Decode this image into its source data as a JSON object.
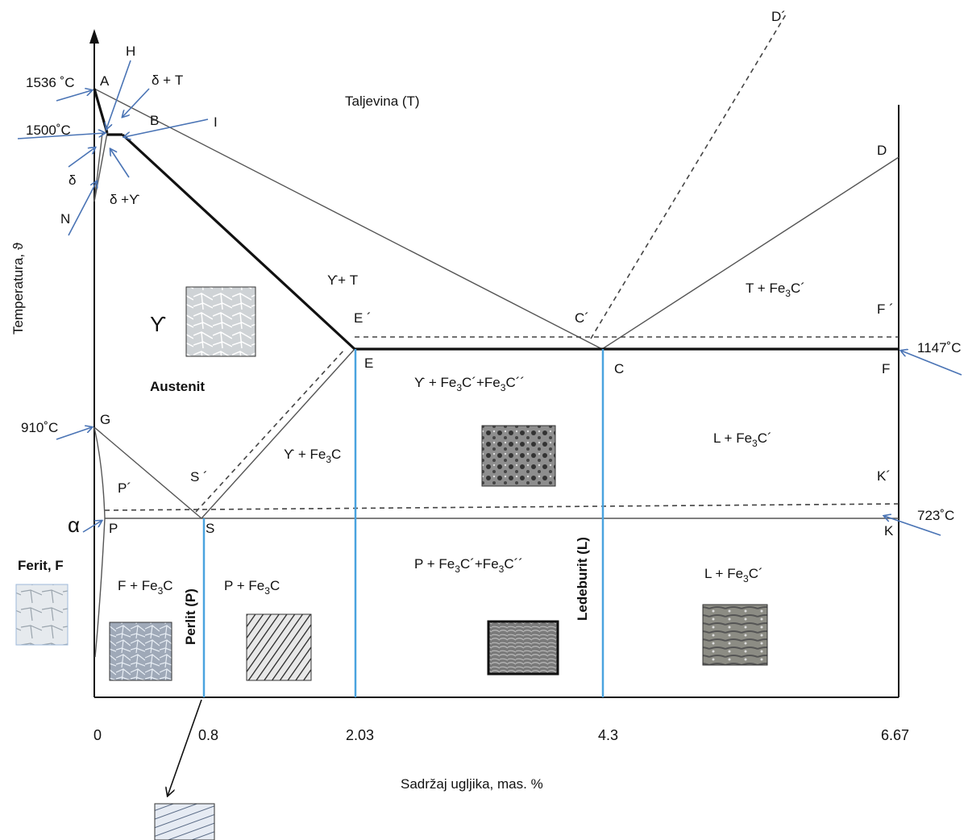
{
  "axes": {
    "y_label": "Temperatura, ϑ",
    "x_label": "Sadržaj ugljika, mas. %",
    "x_ticks": [
      "0",
      "0.8",
      "2.03",
      "4.3",
      "6.67"
    ]
  },
  "temperatures": {
    "t1536": "1536 ˚C",
    "t1500": "1500˚C",
    "t1147": "1147˚C",
    "t910": "910˚C",
    "t723": "723˚C"
  },
  "points": {
    "A": "A",
    "B": "B",
    "H": "H",
    "I": "I",
    "N": "N",
    "D": "D",
    "Dp": "D´",
    "Ep": "E ´",
    "E": "E",
    "Cp": "C´",
    "C": "C",
    "Fp": "F ´",
    "F": "F",
    "G": "G",
    "Pp": "P´",
    "Sp": "S ´",
    "P": "P",
    "S": "S",
    "Kp": "K´",
    "K": "K"
  },
  "regions": {
    "melt": "Taljevina  (T)",
    "delta_melt": "δ + T",
    "delta": "δ",
    "delta_gamma": "δ +ϒ",
    "gamma_melt": "ϒ+ T",
    "gamma": "ϒ",
    "austenite": "Austenit",
    "melt_cem_a": "T + Fe",
    "melt_cem_b": "3",
    "melt_cem_c": "C´",
    "gamma_cem_a": "ϒ + Fe",
    "gamma_cem_b": "3",
    "gamma_cem_c": "C",
    "gamma_cem2_a": "ϒ + Fe",
    "gamma_cem2_b": "3",
    "gamma_cem2_c": "C´+Fe",
    "gamma_cem2_d": "3",
    "gamma_cem2_e": "C´´",
    "ledeb_cem_a": "L + Fe",
    "ledeb_cem_b": "3",
    "ledeb_cem_c": "C´",
    "alpha": "α",
    "ferrite": "Ferit, F",
    "ferrite_cem_a": "F + Fe",
    "ferrite_cem_b": "3",
    "ferrite_cem_c": "C",
    "pearlite_cem_a": "P + Fe",
    "pearlite_cem_b": "3",
    "pearlite_cem_c": "C",
    "pearlite_cem2_a": "P + Fe",
    "pearlite_cem2_b": "3",
    "pearlite_cem2_c": "C´+Fe",
    "pearlite_cem2_d": "3",
    "pearlite_cem2_e": "C´´",
    "ledeb_cem2_a": "L + Fe",
    "ledeb_cem2_b": "3",
    "ledeb_cem2_c": "C´",
    "pearlite": "Perlit (P)",
    "ledeburite": "Ledeburit (L)"
  }
}
